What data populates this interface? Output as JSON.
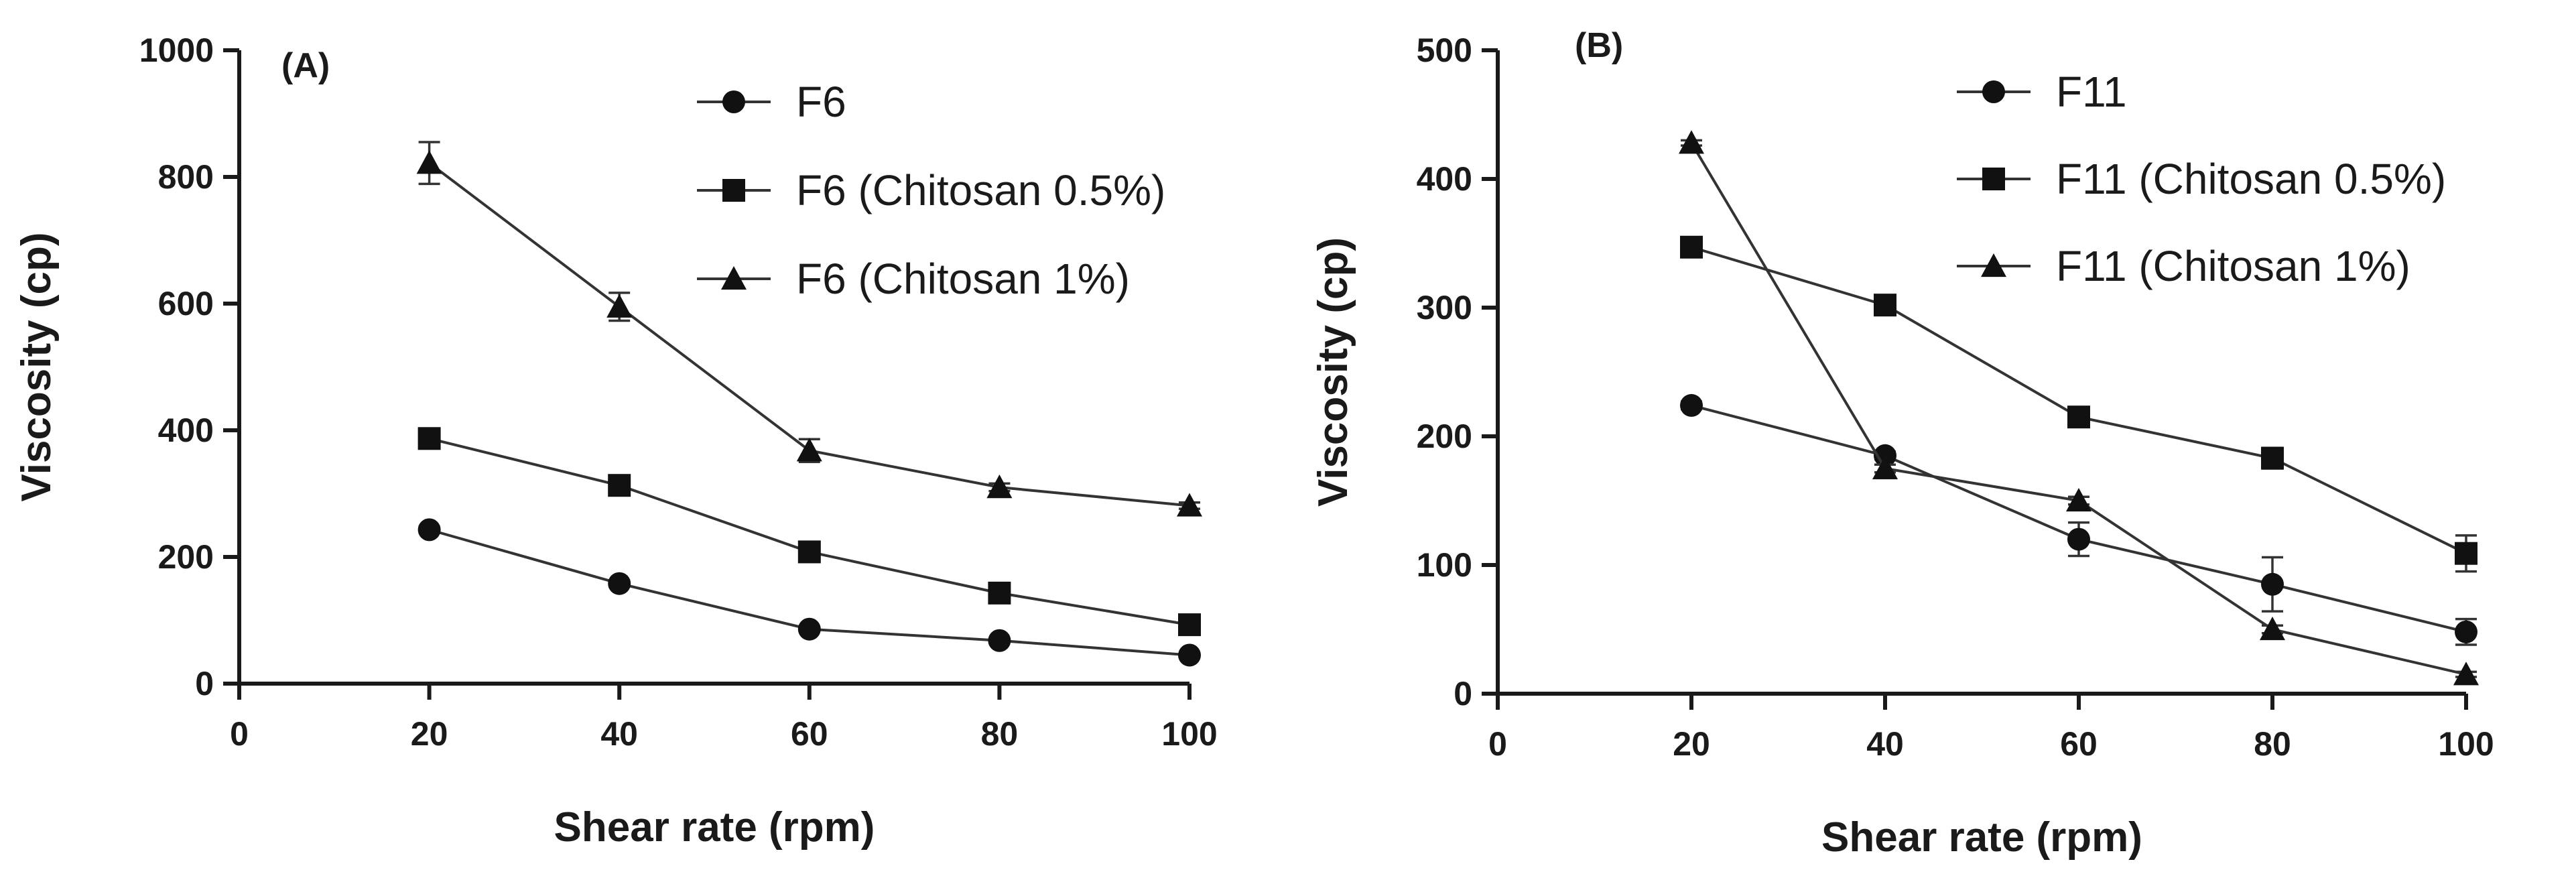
{
  "chart_data": [
    {
      "type": "line",
      "panel_label": "(A)",
      "xlabel": "Shear rate (rpm)",
      "ylabel": "Viscosity (cp)",
      "xlim": [
        0,
        100
      ],
      "ylim": [
        0,
        1000
      ],
      "x_ticks": [
        0,
        20,
        40,
        60,
        80,
        100
      ],
      "y_ticks": [
        0,
        200,
        400,
        600,
        800,
        1000
      ],
      "x": [
        20,
        40,
        60,
        80,
        100
      ],
      "legend_position": "top-right",
      "series": [
        {
          "name": "F6",
          "marker": "circle",
          "values": [
            243,
            158,
            86,
            68,
            45
          ],
          "errors": [
            5,
            5,
            4,
            4,
            4
          ]
        },
        {
          "name": "F6 (Chitosan 0.5%)",
          "marker": "square",
          "values": [
            387,
            313,
            208,
            143,
            93
          ],
          "errors": [
            6,
            6,
            5,
            5,
            4
          ]
        },
        {
          "name": "F6 (Chitosan 1%)",
          "marker": "triangle",
          "values": [
            822,
            595,
            368,
            310,
            281
          ],
          "errors": [
            33,
            22,
            18,
            6,
            5
          ]
        }
      ]
    },
    {
      "type": "line",
      "panel_label": "(B)",
      "xlabel": "Shear rate (rpm)",
      "ylabel": "Viscosity (cp)",
      "xlim": [
        0,
        100
      ],
      "ylim": [
        0,
        500
      ],
      "x_ticks": [
        0,
        20,
        40,
        60,
        80,
        100
      ],
      "y_ticks": [
        0,
        100,
        200,
        300,
        400,
        500
      ],
      "x": [
        20,
        40,
        60,
        80,
        100
      ],
      "legend_position": "top-right",
      "series": [
        {
          "name": "F11",
          "marker": "circle",
          "values": [
            224,
            185,
            120,
            85,
            48
          ],
          "errors": [
            3,
            3,
            13,
            21,
            10
          ]
        },
        {
          "name": "F11 (Chitosan 0.5%)",
          "marker": "square",
          "values": [
            347,
            302,
            215,
            183,
            109
          ],
          "errors": [
            3,
            3,
            3,
            8,
            14
          ]
        },
        {
          "name": "F11 (Chitosan 1%)",
          "marker": "triangle",
          "values": [
            428,
            175,
            150,
            50,
            15
          ],
          "errors": [
            2,
            3,
            3,
            3,
            2
          ]
        }
      ]
    }
  ]
}
